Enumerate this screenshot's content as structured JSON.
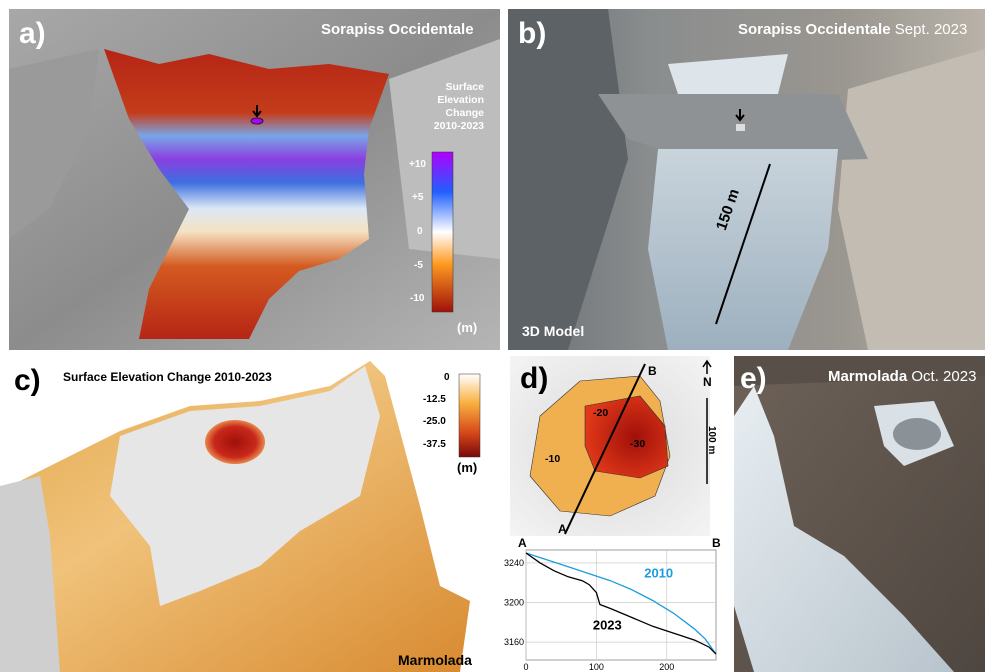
{
  "panel_a": {
    "label": "a)",
    "title": "Sorapiss Occidentale",
    "legend_title": [
      "Surface",
      "Elevation",
      "Change",
      "2010-2023"
    ],
    "ticks": [
      "+10",
      "+5",
      "0",
      "-5",
      "-10"
    ],
    "unit": "(m)"
  },
  "panel_b": {
    "label": "b)",
    "title_bold": "Sorapiss Occidentale",
    "title_rest": " Sept. 2023",
    "scale_label": "150 m",
    "footer": "3D Model"
  },
  "panel_c": {
    "label": "c)",
    "title": "Surface Elevation  Change 2010-2023",
    "ticks": [
      "0",
      "-12.5",
      "-25.0",
      "-37.5"
    ],
    "unit": "(m)",
    "place": "Marmolada"
  },
  "panel_d": {
    "label": "d)",
    "contours": [
      "-20",
      "-30",
      "-10"
    ],
    "A": "A",
    "B": "B",
    "north": "N",
    "scale": "100 m"
  },
  "panel_e": {
    "label": "e)",
    "title_bold": "Marmolada",
    "title_rest": " Oct. 2023"
  },
  "chart_data": {
    "type": "line",
    "xlabel": "",
    "ylabel": "",
    "corner_left": "A",
    "corner_right": "B",
    "xticks": [
      "0",
      "100",
      "200"
    ],
    "yticks": [
      "3240",
      "3200",
      "3160"
    ],
    "xlim": [
      0,
      270
    ],
    "ylim": [
      3142,
      3253
    ],
    "grid": true,
    "series": [
      {
        "name": "2010",
        "color": "#1e9be0",
        "x": [
          0,
          30,
          60,
          90,
          120,
          150,
          180,
          210,
          240,
          255,
          270
        ],
        "y": [
          3250,
          3243,
          3236,
          3229,
          3222,
          3213,
          3202,
          3189,
          3173,
          3163,
          3148
        ]
      },
      {
        "name": "2023",
        "color": "#000000",
        "x": [
          0,
          20,
          40,
          60,
          80,
          90,
          100,
          105,
          120,
          150,
          180,
          210,
          240,
          260,
          270
        ],
        "y": [
          3250,
          3240,
          3232,
          3226,
          3222,
          3218,
          3210,
          3198,
          3194,
          3185,
          3176,
          3169,
          3162,
          3155,
          3148
        ]
      }
    ]
  }
}
